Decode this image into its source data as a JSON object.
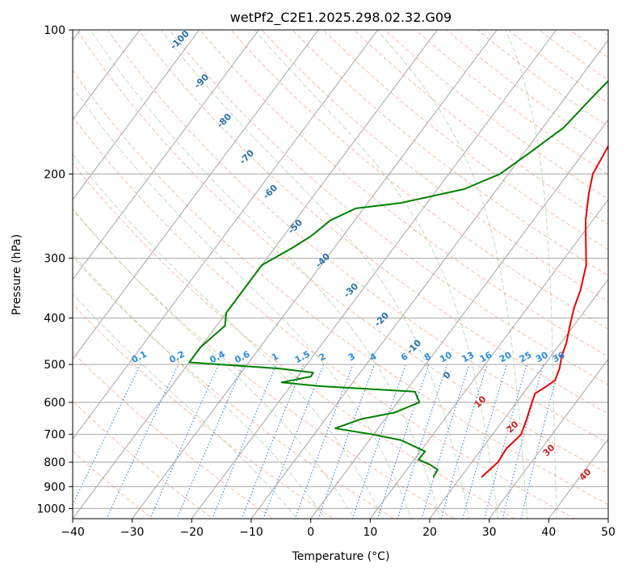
{
  "colors": {
    "temperature": "#ee0000",
    "dewpoint": "#008000",
    "isotherm": "#a6a6a6",
    "isobar": "#a6a6a6",
    "dry_adiabat": "#f4a582",
    "moist_adiabat": "#8fca8f",
    "mixing_ratio": "#1f78d8",
    "label_temp_text": "#2a6fa8",
    "label_mix_text": "#2b8be0",
    "label_iso_text": "#cc2222",
    "pressure_envelope": "#d9b99b"
  },
  "chart_data": {
    "type": "skew-t",
    "title": "wetPf2_C2E1.2025.298.02.32.G09",
    "xlabel": "Temperature (°C)",
    "ylabel": "Pressure (hPa)",
    "xlim": [
      -40,
      50
    ],
    "ylim": [
      1050,
      100
    ],
    "skew_degC_per_log_decade": 60,
    "x_ticks": [
      -40,
      -30,
      -20,
      -10,
      0,
      10,
      20,
      30,
      40,
      50
    ],
    "x_tick_labels": [
      "−40",
      "−30",
      "−20",
      "−10",
      "0",
      "10",
      "20",
      "30",
      "40",
      "50"
    ],
    "y_ticks": [
      1000,
      900,
      800,
      700,
      600,
      500,
      400,
      300,
      200,
      100
    ],
    "y_tick_labels": [
      "1000",
      "900",
      "800",
      "700",
      "600",
      "500",
      "400",
      "300",
      "200",
      "100"
    ],
    "series": [
      {
        "name": "Temperature",
        "points": [
          [
            860,
            23.5
          ],
          [
            800,
            24.4
          ],
          [
            750,
            24.1
          ],
          [
            700,
            24.8
          ],
          [
            650,
            23.8
          ],
          [
            600,
            22.6
          ],
          [
            575,
            22.0
          ],
          [
            560,
            22.8
          ],
          [
            540,
            23.7
          ],
          [
            510,
            23.0
          ],
          [
            480,
            21.8
          ],
          [
            450,
            20.9
          ],
          [
            420,
            19.6
          ],
          [
            400,
            18.7
          ],
          [
            380,
            17.8
          ],
          [
            350,
            16.7
          ],
          [
            310,
            14.5
          ],
          [
            280,
            11.8
          ],
          [
            250,
            8.8
          ],
          [
            220,
            6.0
          ],
          [
            200,
            4.2
          ],
          [
            180,
            3.5
          ],
          [
            160,
            2.7
          ],
          [
            140,
            1.7
          ],
          [
            125,
            0.9
          ],
          [
            110,
            1.1
          ],
          [
            100,
            2.5
          ]
        ]
      },
      {
        "name": "Dewpoint",
        "points": [
          [
            860,
            15.4
          ],
          [
            830,
            15.2
          ],
          [
            810,
            13.3
          ],
          [
            790,
            10.7
          ],
          [
            760,
            10.8
          ],
          [
            720,
            5.4
          ],
          [
            700,
            -0.2
          ],
          [
            680,
            -7.2
          ],
          [
            650,
            -4.0
          ],
          [
            630,
            0.8
          ],
          [
            600,
            3.7
          ],
          [
            570,
            1.6
          ],
          [
            555,
            -15.0
          ],
          [
            545,
            -22.0
          ],
          [
            530,
            -17.8
          ],
          [
            520,
            -17.9
          ],
          [
            510,
            -24.0
          ],
          [
            495,
            -40.0
          ],
          [
            460,
            -40.0
          ],
          [
            415,
            -38.6
          ],
          [
            390,
            -40.0
          ],
          [
            310,
            -40.0
          ],
          [
            285,
            -37.0
          ],
          [
            270,
            -35.4
          ],
          [
            250,
            -34.1
          ],
          [
            236,
            -31.3
          ],
          [
            230,
            -24.5
          ],
          [
            215,
            -15.5
          ],
          [
            200,
            -11.4
          ],
          [
            180,
            -9.0
          ],
          [
            160,
            -6.5
          ],
          [
            140,
            -5.6
          ],
          [
            125,
            -4.7
          ],
          [
            110,
            -2.1
          ],
          [
            100,
            0.2
          ]
        ]
      }
    ],
    "isotherm_labels": [
      {
        "text": "-100",
        "t": -100
      },
      {
        "text": "-90",
        "t": -90
      },
      {
        "text": "-80",
        "t": -80
      },
      {
        "text": "-70",
        "t": -70
      },
      {
        "text": "-60",
        "t": -60
      },
      {
        "text": "-50",
        "t": -50
      },
      {
        "text": "-40",
        "t": -40
      },
      {
        "text": "-30",
        "t": -30
      },
      {
        "text": "-20",
        "t": -20
      },
      {
        "text": "-10",
        "t": -10
      },
      {
        "text": "0",
        "t": 0
      },
      {
        "text": "10",
        "t": 10
      },
      {
        "text": "20",
        "t": 20
      },
      {
        "text": "30",
        "t": 30
      },
      {
        "text": "40",
        "t": 40
      }
    ],
    "mixing_ratio_lines": [
      "0.1",
      "0.2",
      "0.4",
      "0.6",
      "1",
      "1.5",
      "2",
      "3",
      "4",
      "6",
      "8",
      "10",
      "13",
      "16",
      "20",
      "25",
      "30",
      "36"
    ]
  }
}
